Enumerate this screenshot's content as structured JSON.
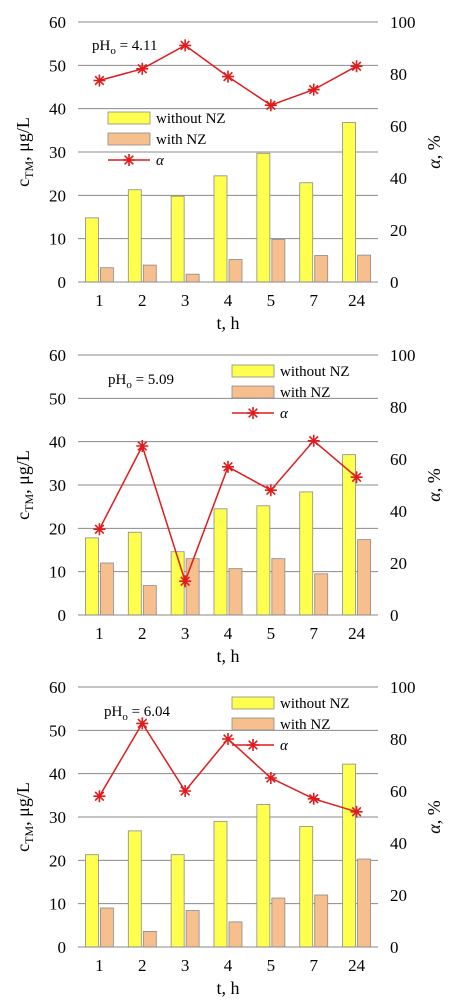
{
  "chart_data": [
    {
      "type": "bar",
      "annotation": {
        "prefix": "pH",
        "sub": "o",
        "value": " = 4.11"
      },
      "categories": [
        "1",
        "2",
        "3",
        "4",
        "5",
        "7",
        "24"
      ],
      "xlabel": "t, h",
      "ylabel": {
        "main": "c",
        "sub": "TM",
        "rest": ", μg/L"
      },
      "y2label": "α, %",
      "ylim": [
        0,
        60
      ],
      "yticks": [
        0,
        10,
        20,
        30,
        40,
        50,
        60
      ],
      "y2lim": [
        0,
        100
      ],
      "y2ticks": [
        0,
        20,
        40,
        60,
        80,
        100
      ],
      "grid": true,
      "legend_position": "middle-left",
      "series": [
        {
          "name": "without NZ",
          "kind": "bar",
          "axis": "left",
          "color": "#ffff4d",
          "values": [
            14.8,
            21.3,
            19.8,
            24.5,
            29.7,
            22.9,
            36.8
          ]
        },
        {
          "name": "with NZ",
          "kind": "bar",
          "axis": "left",
          "color": "#f7bf8e",
          "values": [
            3.3,
            3.9,
            1.8,
            5.2,
            9.8,
            6.1,
            6.2
          ]
        },
        {
          "name": "α",
          "kind": "line",
          "axis": "right",
          "color": "#e01b1b",
          "values": [
            77.5,
            82,
            91,
            79,
            68,
            74,
            83
          ]
        }
      ]
    },
    {
      "type": "bar",
      "annotation": {
        "prefix": "pH",
        "sub": "o",
        "value": " = 5.09"
      },
      "categories": [
        "1",
        "2",
        "3",
        "4",
        "5",
        "7",
        "24"
      ],
      "xlabel": "t, h",
      "ylabel": {
        "main": "c",
        "sub": "TM",
        "rest": ", μg/L"
      },
      "y2label": "α, %",
      "ylim": [
        0,
        60
      ],
      "yticks": [
        0,
        10,
        20,
        30,
        40,
        50,
        60
      ],
      "y2lim": [
        0,
        100
      ],
      "y2ticks": [
        0,
        20,
        40,
        60,
        80,
        100
      ],
      "grid": true,
      "legend_position": "top-right",
      "series": [
        {
          "name": "without NZ",
          "kind": "bar",
          "axis": "left",
          "color": "#ffff4d",
          "values": [
            17.8,
            19.1,
            14.6,
            24.5,
            25.2,
            28.4,
            37.0
          ]
        },
        {
          "name": "with NZ",
          "kind": "bar",
          "axis": "left",
          "color": "#f7bf8e",
          "values": [
            12.0,
            6.8,
            13.0,
            10.7,
            13.0,
            9.5,
            17.4
          ]
        },
        {
          "name": "α",
          "kind": "line",
          "axis": "right",
          "color": "#e01b1b",
          "values": [
            33,
            65,
            13,
            57,
            48,
            67,
            53
          ]
        }
      ]
    },
    {
      "type": "bar",
      "annotation": {
        "prefix": "pH",
        "sub": "o",
        "value": " = 6.04"
      },
      "categories": [
        "1",
        "2",
        "3",
        "4",
        "5",
        "7",
        "24"
      ],
      "xlabel": "t, h",
      "ylabel": {
        "main": "c",
        "sub": "TM",
        "rest": ", μg/L"
      },
      "y2label": "α, %",
      "ylim": [
        0,
        60
      ],
      "yticks": [
        0,
        10,
        20,
        30,
        40,
        50,
        60
      ],
      "y2lim": [
        0,
        100
      ],
      "y2ticks": [
        0,
        20,
        40,
        60,
        80,
        100
      ],
      "grid": true,
      "legend_position": "top-right",
      "series": [
        {
          "name": "without NZ",
          "kind": "bar",
          "axis": "left",
          "color": "#ffff4d",
          "values": [
            21.3,
            26.8,
            21.3,
            29.0,
            32.9,
            27.8,
            42.2
          ]
        },
        {
          "name": "with NZ",
          "kind": "bar",
          "axis": "left",
          "color": "#f7bf8e",
          "values": [
            9.0,
            3.6,
            8.4,
            5.8,
            11.3,
            12.0,
            20.3
          ]
        },
        {
          "name": "α",
          "kind": "line",
          "axis": "right",
          "color": "#e01b1b",
          "values": [
            58,
            86,
            60,
            80,
            65,
            57,
            52
          ]
        }
      ]
    }
  ]
}
